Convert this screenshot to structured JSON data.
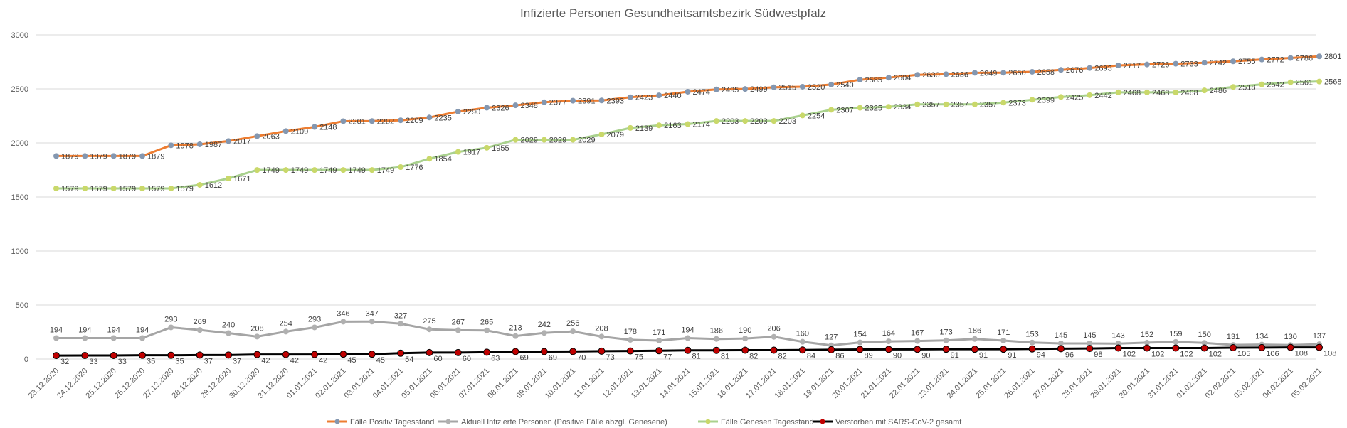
{
  "chart_data": {
    "type": "line",
    "title": "Infizierte Personen Gesundheitsamtsbezirk Südwestpfalz",
    "xlabel": "",
    "ylabel": "",
    "ylim": [
      0,
      3000
    ],
    "yticks": [
      0,
      500,
      1000,
      1500,
      2000,
      2500,
      3000
    ],
    "grid": true,
    "legend_position": "bottom",
    "categories": [
      "23.12.2020",
      "24.12.2020",
      "25.12.2020",
      "26.12.2020",
      "27.12.2020",
      "28.12.2020",
      "29.12.2020",
      "30.12.2020",
      "31.12.2020",
      "01.01.2021",
      "02.01.2021",
      "03.01.2021",
      "04.01.2021",
      "05.01.2021",
      "06.01.2021",
      "07.01.2021",
      "08.01.2021",
      "09.01.2021",
      "10.01.2021",
      "11.01.2021",
      "12.01.2021",
      "13.01.2021",
      "14.01.2021",
      "15.01.2021",
      "16.01.2021",
      "17.01.2021",
      "18.01.2021",
      "19.01.2021",
      "20.01.2021",
      "21.01.2021",
      "22.01.2021",
      "23.01.2021",
      "24.01.2021",
      "25.01.2021",
      "26.01.2021",
      "27.01.2021",
      "28.01.2021",
      "29.01.2021",
      "30.01.2021",
      "31.01.2021",
      "01.02.2021",
      "02.02.2021",
      "03.02.2021",
      "04.02.2021",
      "05.02.2021"
    ],
    "series": [
      {
        "name": "Fälle Positiv Tagesstand",
        "line_color": "#ED7D31",
        "marker_color": "#8497B0",
        "values": [
          1879,
          1879,
          1879,
          1879,
          1978,
          1987,
          2017,
          2063,
          2109,
          2148,
          2201,
          2202,
          2209,
          2235,
          2290,
          2326,
          2348,
          2377,
          2391,
          2393,
          2423,
          2440,
          2474,
          2495,
          2499,
          2515,
          2520,
          2540,
          2585,
          2604,
          2630,
          2636,
          2649,
          2650,
          2658,
          2676,
          2693,
          2717,
          2726,
          2733,
          2742,
          2755,
          2772,
          2786,
          2801
        ]
      },
      {
        "name": "Aktuell Infizierte Personen (Positive Fälle abzgl. Genesene)",
        "line_color": "#A5A5A5",
        "marker_color": "#B0B0B0",
        "values": [
          194,
          194,
          194,
          194,
          293,
          269,
          240,
          208,
          254,
          293,
          346,
          347,
          327,
          275,
          267,
          265,
          213,
          242,
          256,
          208,
          178,
          171,
          194,
          186,
          190,
          206,
          160,
          127,
          154,
          164,
          167,
          173,
          186,
          171,
          153,
          145,
          145,
          143,
          152,
          159,
          150,
          131,
          134,
          130,
          137
        ]
      },
      {
        "name": "Fälle Genesen Tagesstand",
        "line_color": "#A9D18E",
        "marker_color": "#C9D86A",
        "values": [
          1579,
          1579,
          1579,
          1579,
          1579,
          1612,
          1671,
          1749,
          1749,
          1749,
          1749,
          1749,
          1776,
          1854,
          1917,
          1955,
          2029,
          2029,
          2029,
          2079,
          2139,
          2163,
          2174,
          2203,
          2203,
          2203,
          2254,
          2307,
          2325,
          2334,
          2357,
          2357,
          2357,
          2373,
          2399,
          2425,
          2442,
          2468,
          2468,
          2468,
          2486,
          2518,
          2542,
          2561,
          2568
        ]
      },
      {
        "name": "Verstorben mit SARS-CoV-2 gesamt",
        "line_color": "#000000",
        "marker_color": "#C00000",
        "values": [
          32,
          33,
          33,
          35,
          35,
          37,
          37,
          42,
          42,
          42,
          45,
          45,
          54,
          60,
          60,
          63,
          69,
          69,
          70,
          73,
          75,
          77,
          81,
          81,
          82,
          82,
          84,
          86,
          89,
          90,
          90,
          91,
          91,
          91,
          94,
          96,
          98,
          102,
          102,
          102,
          102,
          105,
          106,
          108,
          108
        ]
      }
    ]
  }
}
